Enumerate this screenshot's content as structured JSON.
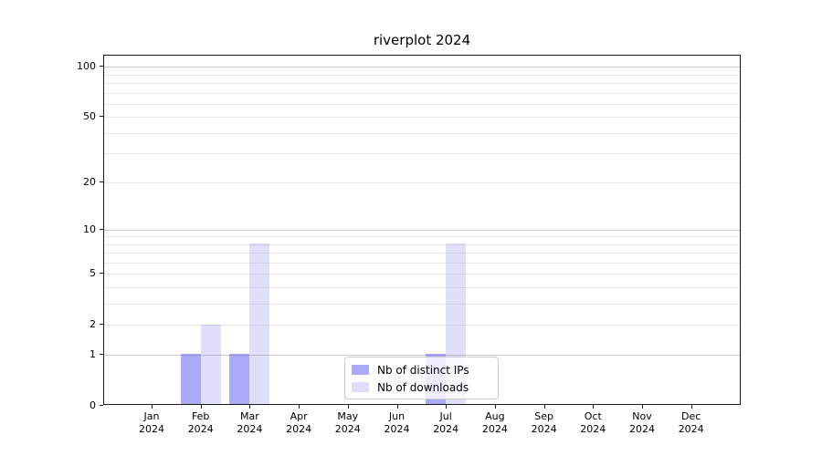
{
  "chart_data": {
    "type": "bar",
    "title": "riverplot 2024",
    "x_axis": {
      "categories": [
        "Jan",
        "Feb",
        "Mar",
        "Apr",
        "May",
        "Jun",
        "Jul",
        "Aug",
        "Sep",
        "Oct",
        "Nov",
        "Dec"
      ],
      "year_label": "2024"
    },
    "y_axis": {
      "scale": "symlog",
      "labeled_ticks": [
        0,
        1,
        2,
        5,
        10,
        20,
        50,
        100
      ],
      "decade_gridlines": [
        1,
        10,
        100
      ],
      "minor_gridlines": [
        2,
        3,
        4,
        5,
        6,
        7,
        8,
        9,
        20,
        30,
        40,
        50,
        60,
        70,
        80,
        90
      ],
      "range": [
        0,
        117.7
      ]
    },
    "series": [
      {
        "name": "Nb of distinct IPs",
        "color_hex": "#aaaaf8",
        "fill": "rgba(100,100,242,0.55)",
        "values": [
          0,
          1,
          1,
          0,
          0,
          0,
          1,
          0,
          0,
          0,
          0,
          0
        ]
      },
      {
        "name": "Nb of downloads",
        "color_hex": "#dedef9",
        "fill": "rgba(108,108,232,0.22)",
        "values": [
          0,
          2,
          8,
          0,
          0,
          0,
          8,
          0,
          0,
          0,
          0,
          0
        ]
      }
    ],
    "legend": {
      "position": "lower center inside"
    },
    "grid": "horizontal",
    "colors": {
      "decade_grid": "#c9c9c9",
      "minor_grid": "#e9e9e9",
      "axis": "#1a1a1a",
      "text": "#000000",
      "background": "#ffffff"
    }
  }
}
